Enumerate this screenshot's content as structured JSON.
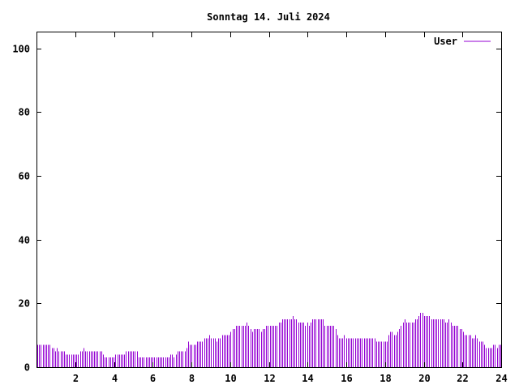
{
  "chart_data": {
    "type": "bar",
    "title": "Sonntag 14. Juli 2024",
    "xlabel": "",
    "ylabel": "",
    "xlim": [
      0,
      24
    ],
    "ylim": [
      0,
      105
    ],
    "x_ticks": [
      "2",
      "4",
      "6",
      "8",
      "10",
      "12",
      "14",
      "16",
      "18",
      "20",
      "22",
      "24"
    ],
    "y_ticks": [
      "0",
      "20",
      "40",
      "60",
      "80",
      "100"
    ],
    "grid": false,
    "legend": "top-right",
    "series": [
      {
        "name": "User",
        "color": "#9400d3",
        "bar_width_hours": 0.0833,
        "values": [
          7,
          7,
          7,
          7,
          7,
          7,
          7,
          7,
          6,
          6,
          5,
          6,
          5,
          5,
          5,
          5,
          4,
          4,
          4,
          4,
          4,
          4,
          4,
          4,
          5,
          5,
          6,
          5,
          5,
          5,
          5,
          5,
          5,
          5,
          5,
          5,
          5,
          4,
          3,
          3,
          3,
          3,
          3,
          3,
          4,
          4,
          4,
          4,
          4,
          4,
          5,
          5,
          5,
          5,
          5,
          5,
          5,
          3,
          3,
          3,
          3,
          3,
          3,
          3,
          3,
          3,
          3,
          3,
          3,
          3,
          3,
          3,
          3,
          3,
          3,
          4,
          4,
          3,
          4,
          5,
          5,
          5,
          5,
          5,
          6,
          8,
          7,
          7,
          7,
          7,
          8,
          8,
          8,
          8,
          9,
          9,
          9,
          10,
          9,
          9,
          9,
          8,
          9,
          9,
          10,
          10,
          10,
          10,
          10,
          11,
          12,
          12,
          13,
          13,
          13,
          13,
          13,
          13,
          14,
          13,
          12,
          11,
          12,
          12,
          12,
          12,
          11,
          12,
          12,
          13,
          13,
          13,
          13,
          13,
          13,
          13,
          14,
          14,
          15,
          15,
          15,
          15,
          15,
          15,
          16,
          15,
          15,
          14,
          14,
          14,
          14,
          13,
          14,
          13,
          14,
          15,
          15,
          15,
          15,
          15,
          15,
          15,
          13,
          13,
          13,
          13,
          13,
          13,
          12,
          10,
          9,
          9,
          9,
          10,
          9,
          9,
          9,
          9,
          9,
          9,
          9,
          9,
          9,
          9,
          9,
          9,
          9,
          9,
          9,
          9,
          9,
          8,
          8,
          8,
          8,
          8,
          8,
          8,
          10,
          11,
          11,
          10,
          10,
          11,
          12,
          13,
          14,
          15,
          14,
          14,
          14,
          14,
          14,
          15,
          15,
          16,
          17,
          17,
          16,
          16,
          16,
          16,
          15,
          15,
          15,
          15,
          15,
          15,
          15,
          15,
          14,
          14,
          15,
          14,
          13,
          13,
          13,
          13,
          12,
          12,
          11,
          10,
          10,
          10,
          10,
          9,
          9,
          10,
          9,
          8,
          8,
          8,
          7,
          6,
          6,
          6,
          6,
          7,
          7,
          6,
          7,
          7
        ]
      }
    ]
  }
}
